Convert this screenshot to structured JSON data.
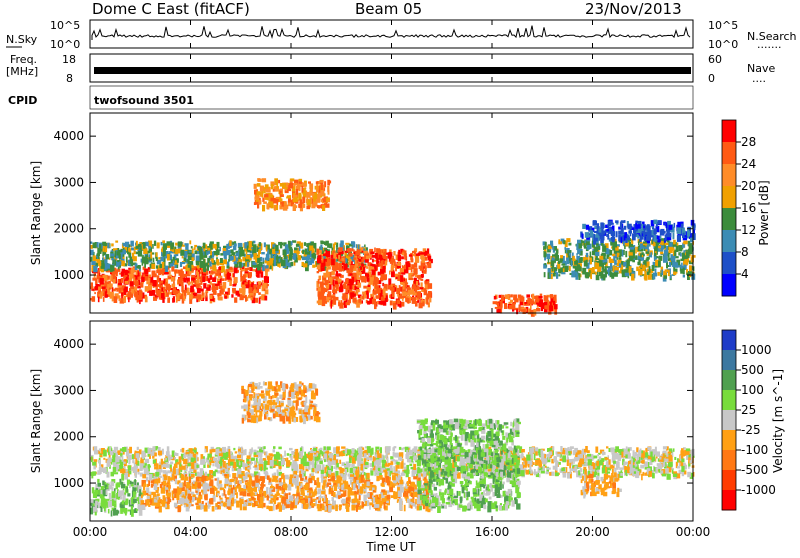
{
  "header": {
    "title": "Dome C East (fitACF)",
    "beam": "Beam 05",
    "date": "23/Nov/2013"
  },
  "noise_panel": {
    "left_label": "N.Sky",
    "right_label": "N.Search",
    "right_legend": ".......",
    "tick_top": "10^5",
    "tick_bottom": "10^0"
  },
  "freq_panel": {
    "left_label_line1": "Freq.",
    "left_label_line2": "[MHz]",
    "left_tick_top": "18",
    "left_tick_bottom": "8",
    "right_label": "Nave",
    "right_legend": "....",
    "right_tick_top": "60",
    "right_tick_bottom": "0"
  },
  "cpid": {
    "label": "CPID",
    "value": "twofsound 3501"
  },
  "x_axis": {
    "label": "Time UT",
    "ticks": [
      "00:00",
      "04:00",
      "08:00",
      "12:00",
      "16:00",
      "20:00",
      "00:00"
    ]
  },
  "power_colorbar": {
    "label": "Power [dB]",
    "ticks": [
      "28",
      "24",
      "20",
      "16",
      "12",
      "8",
      "4"
    ],
    "colors": [
      "#ff0000",
      "#ff5a14",
      "#ff8c28",
      "#f0a000",
      "#3c8c3c",
      "#3c8cb4",
      "#1e50c8",
      "#0000ff"
    ]
  },
  "velocity_colorbar": {
    "label": "Velocity [m s^-1]",
    "ticks": [
      "1000",
      "500",
      "100",
      "25",
      "-25",
      "-100",
      "-500",
      "-1000"
    ],
    "colors": [
      "#1e3cc8",
      "#3c78a0",
      "#50a050",
      "#78dc3c",
      "#c8c8c8",
      "#ffa014",
      "#ff7814",
      "#ff3c00",
      "#ff0000"
    ]
  },
  "chart_data": [
    {
      "type": "heatmap",
      "name": "power",
      "ylabel": "Slant Range [km]",
      "xlabel": "",
      "y_ticks": [
        1000,
        2000,
        3000,
        4000
      ],
      "ylim": [
        180,
        4500
      ],
      "xlim_hours": [
        0,
        24
      ],
      "regions": [
        {
          "t0": 0.0,
          "t1": 7.0,
          "r0": 500,
          "r1": 1200,
          "value": 26
        },
        {
          "t0": 0.0,
          "t1": 11.0,
          "r0": 1200,
          "r1": 1750,
          "value": 16
        },
        {
          "t0": 6.5,
          "t1": 9.5,
          "r0": 2500,
          "r1": 3100,
          "value": 22
        },
        {
          "t0": 9.0,
          "t1": 13.5,
          "r0": 400,
          "r1": 1600,
          "value": 27
        },
        {
          "t0": 16.0,
          "t1": 18.5,
          "r0": 250,
          "r1": 600,
          "value": 29
        },
        {
          "t0": 18.0,
          "t1": 24.0,
          "r0": 1000,
          "r1": 1800,
          "value": 12
        },
        {
          "t0": 19.5,
          "t1": 24.0,
          "r0": 1800,
          "r1": 2200,
          "value": 6
        }
      ]
    },
    {
      "type": "heatmap",
      "name": "velocity",
      "ylabel": "Slant Range [km]",
      "xlabel": "Time UT",
      "y_ticks": [
        1000,
        2000,
        3000,
        4000
      ],
      "ylim": [
        180,
        4500
      ],
      "xlim_hours": [
        0,
        24
      ],
      "regions": [
        {
          "t0": 0.0,
          "t1": 24.0,
          "r0": 1200,
          "r1": 1800,
          "value": 0
        },
        {
          "t0": 0.0,
          "t1": 2.0,
          "r0": 400,
          "r1": 1100,
          "value": 150
        },
        {
          "t0": 2.0,
          "t1": 13.5,
          "r0": 500,
          "r1": 1200,
          "value": -150
        },
        {
          "t0": 6.0,
          "t1": 9.0,
          "r0": 2400,
          "r1": 3200,
          "value": -150
        },
        {
          "t0": 13.0,
          "t1": 17.0,
          "r0": 500,
          "r1": 2400,
          "value": 300
        },
        {
          "t0": 19.5,
          "t1": 21.0,
          "r0": 800,
          "r1": 1200,
          "value": -200
        }
      ]
    }
  ]
}
